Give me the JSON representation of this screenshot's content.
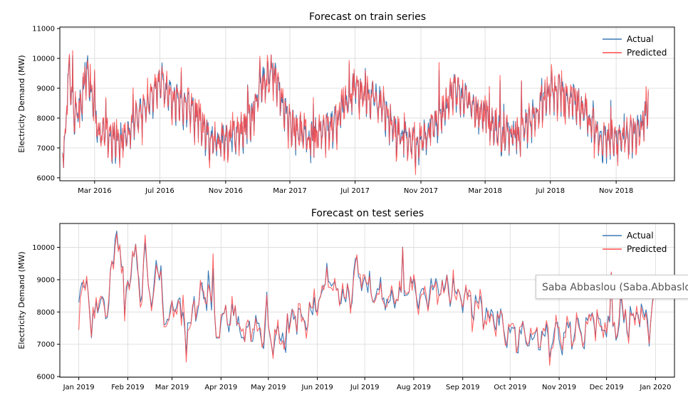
{
  "colors": {
    "actual": "#3a78b5",
    "predicted": "#ff4b4b",
    "grid": "#d9d9d9"
  },
  "tooltip": {
    "text": "Saba Abbaslou (Saba.Abbaslou"
  },
  "chart_data": [
    {
      "type": "line",
      "title": "Forecast on train series",
      "xlabel": "",
      "ylabel": "Electricity Demand (MW)",
      "ylim": [
        5900,
        11050
      ],
      "yticks": [
        6000,
        7000,
        8000,
        9000,
        10000,
        11000
      ],
      "xlim": [
        "2015-12-27",
        "2019-02-18"
      ],
      "xticks": [
        {
          "date": "2016-03-01",
          "label": "Mar 2016"
        },
        {
          "date": "2016-07-01",
          "label": "Jul 2016"
        },
        {
          "date": "2016-11-01",
          "label": "Nov 2016"
        },
        {
          "date": "2017-03-01",
          "label": "Mar 2017"
        },
        {
          "date": "2017-07-01",
          "label": "Jul 2017"
        },
        {
          "date": "2017-11-01",
          "label": "Nov 2017"
        },
        {
          "date": "2018-03-01",
          "label": "Mar 2018"
        },
        {
          "date": "2018-07-01",
          "label": "Jul 2018"
        },
        {
          "date": "2018-11-01",
          "label": "Nov 2018"
        }
      ],
      "grid": true,
      "legend_position": "top-right",
      "series_names": [
        "Actual",
        "Predicted"
      ],
      "frequency": "daily",
      "anchors": [
        [
          "2016-01-01",
          6900
        ],
        [
          "2016-01-06",
          7400
        ],
        [
          "2016-01-10",
          9000
        ],
        [
          "2016-01-14",
          9700
        ],
        [
          "2016-01-20",
          8300
        ],
        [
          "2016-01-28",
          8100
        ],
        [
          "2016-02-05",
          8500
        ],
        [
          "2016-02-12",
          9400
        ],
        [
          "2016-02-16",
          9700
        ],
        [
          "2016-02-22",
          8700
        ],
        [
          "2016-03-01",
          8300
        ],
        [
          "2016-03-08",
          7300
        ],
        [
          "2016-03-20",
          7500
        ],
        [
          "2016-04-05",
          7300
        ],
        [
          "2016-04-25",
          7300
        ],
        [
          "2016-05-10",
          7800
        ],
        [
          "2016-05-25",
          8100
        ],
        [
          "2016-06-10",
          8500
        ],
        [
          "2016-06-25",
          9000
        ],
        [
          "2016-07-05",
          9300
        ],
        [
          "2016-07-15",
          8800
        ],
        [
          "2016-07-25",
          8600
        ],
        [
          "2016-08-10",
          8500
        ],
        [
          "2016-08-25",
          8300
        ],
        [
          "2016-09-10",
          8000
        ],
        [
          "2016-09-25",
          7400
        ],
        [
          "2016-10-15",
          7200
        ],
        [
          "2016-11-05",
          7300
        ],
        [
          "2016-11-25",
          7400
        ],
        [
          "2016-12-10",
          7800
        ],
        [
          "2016-12-25",
          8300
        ],
        [
          "2017-01-05",
          9000
        ],
        [
          "2017-01-15",
          9300
        ],
        [
          "2017-01-25",
          9600
        ],
        [
          "2017-02-05",
          9200
        ],
        [
          "2017-02-15",
          8400
        ],
        [
          "2017-02-25",
          8000
        ],
        [
          "2017-03-10",
          7600
        ],
        [
          "2017-03-25",
          7500
        ],
        [
          "2017-04-10",
          7300
        ],
        [
          "2017-04-25",
          7500
        ],
        [
          "2017-05-15",
          7700
        ],
        [
          "2017-06-01",
          8000
        ],
        [
          "2017-06-15",
          8600
        ],
        [
          "2017-07-01",
          9000
        ],
        [
          "2017-07-15",
          8900
        ],
        [
          "2017-08-01",
          8700
        ],
        [
          "2017-08-15",
          8500
        ],
        [
          "2017-09-01",
          8000
        ],
        [
          "2017-09-20",
          7400
        ],
        [
          "2017-10-10",
          7200
        ],
        [
          "2017-10-25",
          7200
        ],
        [
          "2017-11-10",
          7400
        ],
        [
          "2017-12-01",
          7800
        ],
        [
          "2017-12-20",
          8400
        ],
        [
          "2018-01-01",
          8900
        ],
        [
          "2018-01-10",
          8900
        ],
        [
          "2018-01-25",
          8600
        ],
        [
          "2018-02-10",
          8300
        ],
        [
          "2018-02-25",
          8100
        ],
        [
          "2018-03-10",
          7800
        ],
        [
          "2018-03-25",
          7600
        ],
        [
          "2018-04-10",
          7400
        ],
        [
          "2018-04-25",
          7400
        ],
        [
          "2018-05-15",
          7700
        ],
        [
          "2018-06-01",
          8100
        ],
        [
          "2018-06-15",
          8600
        ],
        [
          "2018-07-01",
          9000
        ],
        [
          "2018-07-15",
          8900
        ],
        [
          "2018-08-01",
          8800
        ],
        [
          "2018-08-15",
          8600
        ],
        [
          "2018-09-01",
          8300
        ],
        [
          "2018-09-20",
          7700
        ],
        [
          "2018-10-10",
          7300
        ],
        [
          "2018-10-25",
          7300
        ],
        [
          "2018-11-10",
          7300
        ],
        [
          "2018-11-25",
          7400
        ],
        [
          "2018-12-10",
          7600
        ],
        [
          "2018-12-20",
          7800
        ],
        [
          "2018-12-31",
          8400
        ]
      ]
    },
    {
      "type": "line",
      "title": "Forecast on test series",
      "xlabel": "",
      "ylabel": "Electricity Demand (MW)",
      "ylim": [
        5980,
        10740
      ],
      "yticks": [
        6000,
        7000,
        8000,
        9000,
        10000
      ],
      "xlim": [
        "2018-12-20",
        "2020-01-13"
      ],
      "xticks": [
        {
          "date": "2019-01-01",
          "label": "Jan 2019"
        },
        {
          "date": "2019-02-01",
          "label": "Feb 2019"
        },
        {
          "date": "2019-03-01",
          "label": "Mar 2019"
        },
        {
          "date": "2019-04-01",
          "label": "Apr 2019"
        },
        {
          "date": "2019-05-01",
          "label": "May 2019"
        },
        {
          "date": "2019-06-01",
          "label": "Jun 2019"
        },
        {
          "date": "2019-07-01",
          "label": "Jul 2019"
        },
        {
          "date": "2019-08-01",
          "label": "Aug 2019"
        },
        {
          "date": "2019-09-01",
          "label": "Sep 2019"
        },
        {
          "date": "2019-10-01",
          "label": "Oct 2019"
        },
        {
          "date": "2019-11-01",
          "label": "Nov 2019"
        },
        {
          "date": "2019-12-01",
          "label": "Dec 2019"
        },
        {
          "date": "2020-01-01",
          "label": "Jan 2020"
        }
      ],
      "grid": true,
      "legend_position": "top-right",
      "series_names": [
        "Actual",
        "Predicted"
      ],
      "frequency": "daily",
      "anchors": [
        [
          "2019-01-01",
          8300
        ],
        [
          "2019-01-04",
          8700
        ],
        [
          "2019-01-06",
          9100
        ],
        [
          "2019-01-09",
          7300
        ],
        [
          "2019-01-12",
          8300
        ],
        [
          "2019-01-16",
          8500
        ],
        [
          "2019-01-18",
          7800
        ],
        [
          "2019-01-21",
          9200
        ],
        [
          "2019-01-24",
          10100
        ],
        [
          "2019-01-27",
          10400
        ],
        [
          "2019-01-30",
          8200
        ],
        [
          "2019-02-03",
          9600
        ],
        [
          "2019-02-06",
          9900
        ],
        [
          "2019-02-09",
          8700
        ],
        [
          "2019-02-12",
          9700
        ],
        [
          "2019-02-15",
          8200
        ],
        [
          "2019-02-18",
          9200
        ],
        [
          "2019-02-22",
          9200
        ],
        [
          "2019-02-25",
          7300
        ],
        [
          "2019-03-01",
          8400
        ],
        [
          "2019-03-05",
          8300
        ],
        [
          "2019-03-10",
          7300
        ],
        [
          "2019-03-15",
          8200
        ],
        [
          "2019-03-20",
          8500
        ],
        [
          "2019-03-25",
          8300
        ],
        [
          "2019-03-30",
          7200
        ],
        [
          "2019-04-05",
          7900
        ],
        [
          "2019-04-10",
          7800
        ],
        [
          "2019-04-15",
          7200
        ],
        [
          "2019-04-20",
          7600
        ],
        [
          "2019-04-25",
          7500
        ],
        [
          "2019-05-01",
          7100
        ],
        [
          "2019-05-05",
          7300
        ],
        [
          "2019-05-10",
          7200
        ],
        [
          "2019-05-15",
          7700
        ],
        [
          "2019-05-20",
          7900
        ],
        [
          "2019-05-25",
          7900
        ],
        [
          "2019-05-30",
          8000
        ],
        [
          "2019-06-04",
          8800
        ],
        [
          "2019-06-08",
          9300
        ],
        [
          "2019-06-12",
          8500
        ],
        [
          "2019-06-17",
          8300
        ],
        [
          "2019-06-22",
          8700
        ],
        [
          "2019-06-26",
          9300
        ],
        [
          "2019-07-01",
          8800
        ],
        [
          "2019-07-06",
          8800
        ],
        [
          "2019-07-12",
          8600
        ],
        [
          "2019-07-18",
          8300
        ],
        [
          "2019-07-24",
          8600
        ],
        [
          "2019-07-30",
          8700
        ],
        [
          "2019-08-05",
          8400
        ],
        [
          "2019-08-12",
          8700
        ],
        [
          "2019-08-20",
          8700
        ],
        [
          "2019-08-26",
          8800
        ],
        [
          "2019-08-31",
          8700
        ],
        [
          "2019-09-05",
          8200
        ],
        [
          "2019-09-10",
          8200
        ],
        [
          "2019-09-16",
          7900
        ],
        [
          "2019-09-22",
          7700
        ],
        [
          "2019-09-28",
          7600
        ],
        [
          "2019-10-04",
          7300
        ],
        [
          "2019-10-10",
          7300
        ],
        [
          "2019-10-18",
          7200
        ],
        [
          "2019-10-25",
          7200
        ],
        [
          "2019-11-01",
          7300
        ],
        [
          "2019-11-08",
          7400
        ],
        [
          "2019-11-15",
          7400
        ],
        [
          "2019-11-22",
          7600
        ],
        [
          "2019-11-30",
          7600
        ],
        [
          "2019-12-07",
          7700
        ],
        [
          "2019-12-15",
          7800
        ],
        [
          "2019-12-22",
          7900
        ],
        [
          "2019-12-28",
          7500
        ],
        [
          "2019-12-31",
          8200
        ]
      ]
    }
  ]
}
